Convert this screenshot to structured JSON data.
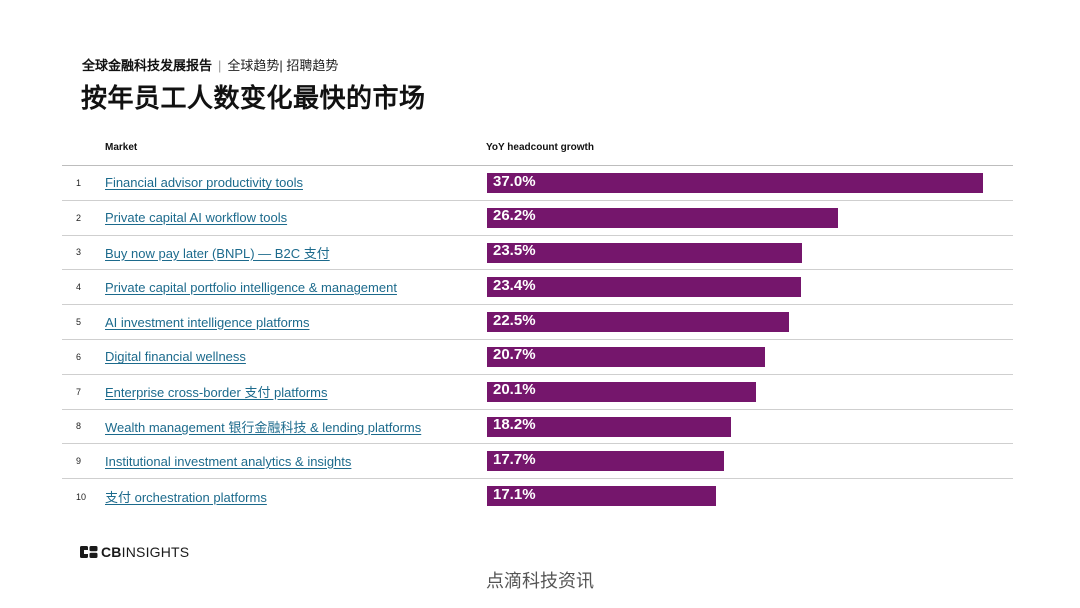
{
  "breadcrumb": {
    "report": "全球金融科技发展报告",
    "separator": "|",
    "section": "全球趋势| 招聘趋势"
  },
  "title": "按年员工人数变化最快的市场",
  "colors": {
    "bar": "#75166c",
    "link": "#1c6a8c"
  },
  "chart_data": {
    "type": "bar",
    "orientation": "horizontal",
    "title": "按年员工人数变化最快的市场",
    "column_headers": {
      "market": "Market",
      "value": "YoY headcount growth"
    },
    "ranks": [
      "1",
      "2",
      "3",
      "4",
      "5",
      "6",
      "7",
      "8",
      "9",
      "10"
    ],
    "categories": [
      "Financial advisor productivity tools",
      "Private capital AI workflow tools",
      "Buy now pay later (BNPL) — B2C 支付",
      "Private capital portfolio intelligence & management",
      "AI investment intelligence platforms",
      "Digital financial wellness",
      "Enterprise cross-border 支付 platforms",
      "Wealth management 银行金融科技 & lending platforms",
      "Institutional investment analytics & insights",
      "支付 orchestration platforms"
    ],
    "values": [
      37.0,
      26.2,
      23.5,
      23.4,
      22.5,
      20.7,
      20.1,
      18.2,
      17.7,
      17.1
    ],
    "value_labels": [
      "37.0%",
      "26.2%",
      "23.5%",
      "23.4%",
      "22.5%",
      "20.7%",
      "20.1%",
      "18.2%",
      "17.7%",
      "17.1%"
    ],
    "unit": "%",
    "xlim": [
      0,
      37.0
    ]
  },
  "footer": {
    "logo_prefix": "CB",
    "logo_suffix": "INSIGHTS",
    "watermark": "点滴科技资讯"
  }
}
